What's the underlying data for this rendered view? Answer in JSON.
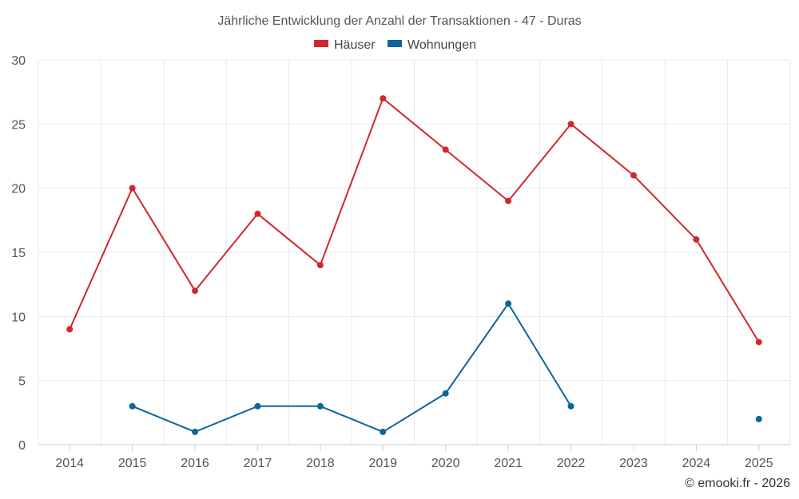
{
  "chart_data": {
    "type": "line",
    "title": "Jährliche Entwicklung der Anzahl der Transaktionen - 47 - Duras",
    "categories": [
      "2014",
      "2015",
      "2016",
      "2017",
      "2018",
      "2019",
      "2020",
      "2021",
      "2022",
      "2023",
      "2024",
      "2025"
    ],
    "series": [
      {
        "name": "Häuser",
        "color": "#d0282c",
        "values": [
          9,
          20,
          12,
          18,
          14,
          27,
          23,
          19,
          25,
          21,
          16,
          8
        ]
      },
      {
        "name": "Wohnungen",
        "color": "#0d6699",
        "values": [
          null,
          3,
          1,
          3,
          3,
          1,
          4,
          11,
          3,
          null,
          null,
          2
        ]
      }
    ],
    "ylim": [
      0,
      30
    ],
    "yticks": [
      0,
      5,
      10,
      15,
      20,
      25,
      30
    ],
    "xlabel": "",
    "ylabel": "",
    "grid": true,
    "legend_position": "top-center",
    "credit": "© emooki.fr - 2026"
  }
}
